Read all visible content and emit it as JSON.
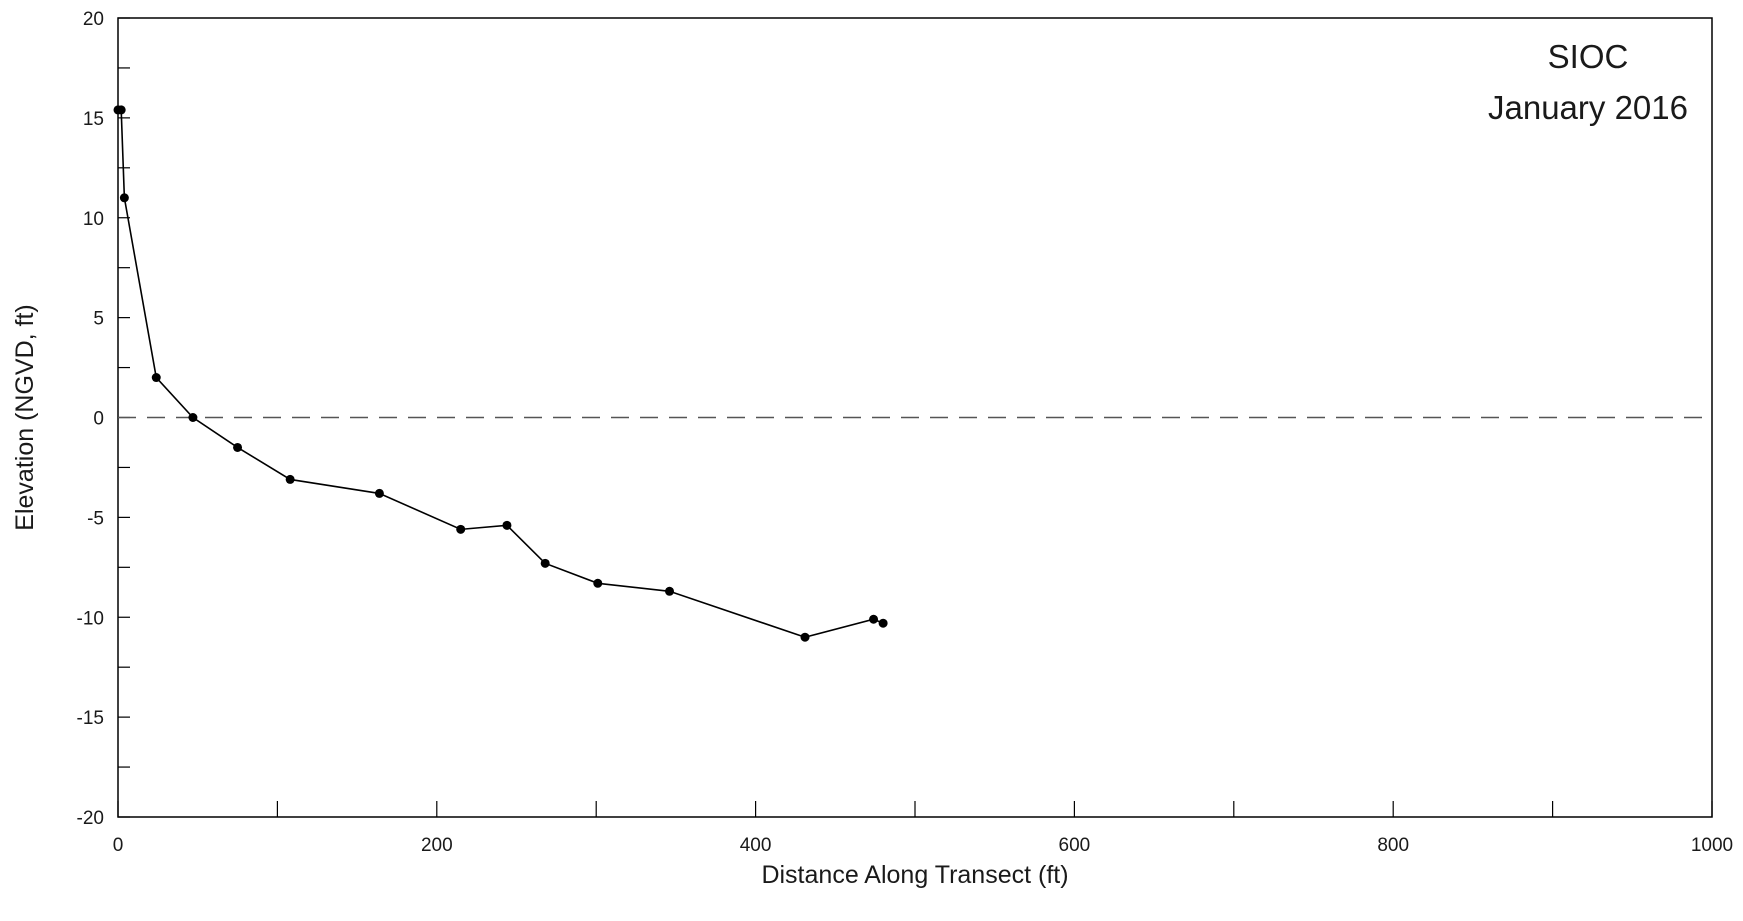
{
  "chart_data": {
    "type": "line",
    "title": "",
    "annotation": {
      "line1": "SIOC",
      "line2": "January 2016",
      "placement": "top-right"
    },
    "xlabel": "Distance Along Transect (ft)",
    "ylabel": "Elevation (NGVD, ft)",
    "xlim": [
      0,
      1000
    ],
    "ylim": [
      -20,
      20
    ],
    "x_ticks": [
      0,
      200,
      400,
      600,
      800,
      1000
    ],
    "x_minor_ticks": [
      100,
      300,
      500,
      700,
      900
    ],
    "y_ticks": [
      -20,
      -15,
      -10,
      -5,
      0,
      5,
      10,
      15,
      20
    ],
    "y_minor_ticks": [
      -17.5,
      -12.5,
      -7.5,
      -2.5,
      2.5,
      7.5,
      12.5,
      17.5
    ],
    "reference_line": {
      "y": 0,
      "style": "dashed",
      "color": "#555555"
    },
    "grid": false,
    "series": [
      {
        "color": "#000000",
        "marker": "circle",
        "points": [
          {
            "x": 0,
            "y": 15.4
          },
          {
            "x": 2,
            "y": 15.4
          },
          {
            "x": 4,
            "y": 11.0
          },
          {
            "x": 24,
            "y": 2.0
          },
          {
            "x": 47,
            "y": 0.0
          },
          {
            "x": 75,
            "y": -1.5
          },
          {
            "x": 108,
            "y": -3.1
          },
          {
            "x": 164,
            "y": -3.8
          },
          {
            "x": 215,
            "y": -5.6
          },
          {
            "x": 244,
            "y": -5.4
          },
          {
            "x": 268,
            "y": -7.3
          },
          {
            "x": 301,
            "y": -8.3
          },
          {
            "x": 346,
            "y": -8.7
          },
          {
            "x": 431,
            "y": -11.0
          },
          {
            "x": 474,
            "y": -10.1
          },
          {
            "x": 480,
            "y": -10.3
          }
        ]
      }
    ]
  }
}
